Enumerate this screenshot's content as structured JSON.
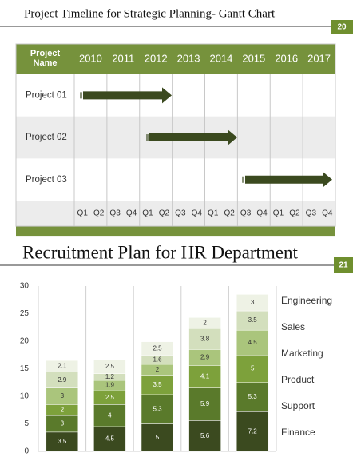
{
  "gantt": {
    "title": "Project Timeline  for Strategic Planning-  Gantt Chart",
    "page": "20",
    "header": {
      "name": "Project Name",
      "years": [
        "2010",
        "2011",
        "2012",
        "2013",
        "2014",
        "2015",
        "2016",
        "2017"
      ]
    },
    "rows": [
      "Project 01",
      "Project 02",
      "Project 03"
    ],
    "quarters": [
      "Q1",
      "Q2",
      "Q3",
      "Q4",
      "Q1",
      "Q2",
      "Q3",
      "Q4",
      "Q1",
      "Q2",
      "Q3",
      "Q4",
      "Q1",
      "Q2",
      "Q3",
      "Q4"
    ]
  },
  "chart_data": {
    "type": "stacked-bar",
    "title": "Recruitment Plan for HR Department",
    "page": "21",
    "categories": [
      null,
      null,
      null,
      null,
      null
    ],
    "ylim": [
      0,
      30
    ],
    "yticks": [
      0,
      5,
      10,
      15,
      20,
      25,
      30
    ],
    "series": [
      {
        "name": "Finance",
        "color": "#3b4a1f",
        "values": [
          3.5,
          4.5,
          5,
          5.6,
          7.2
        ]
      },
      {
        "name": "Support",
        "color": "#5a7a2b",
        "values": [
          3,
          4,
          5.3,
          5.9,
          5.3
        ]
      },
      {
        "name": "Product",
        "color": "#7da13b",
        "values": [
          2,
          2.5,
          3.5,
          4.1,
          5
        ]
      },
      {
        "name": "Marketing",
        "color": "#aac57c",
        "values": [
          3,
          1.9,
          2,
          2.9,
          4.5
        ]
      },
      {
        "name": "Sales",
        "color": "#d3dfbd",
        "values": [
          2.9,
          1.2,
          1.6,
          3.8,
          3.5
        ]
      },
      {
        "name": "Engineering",
        "color": "#eef2e5",
        "values": [
          2.1,
          2.5,
          2.5,
          2,
          3
        ]
      }
    ]
  }
}
